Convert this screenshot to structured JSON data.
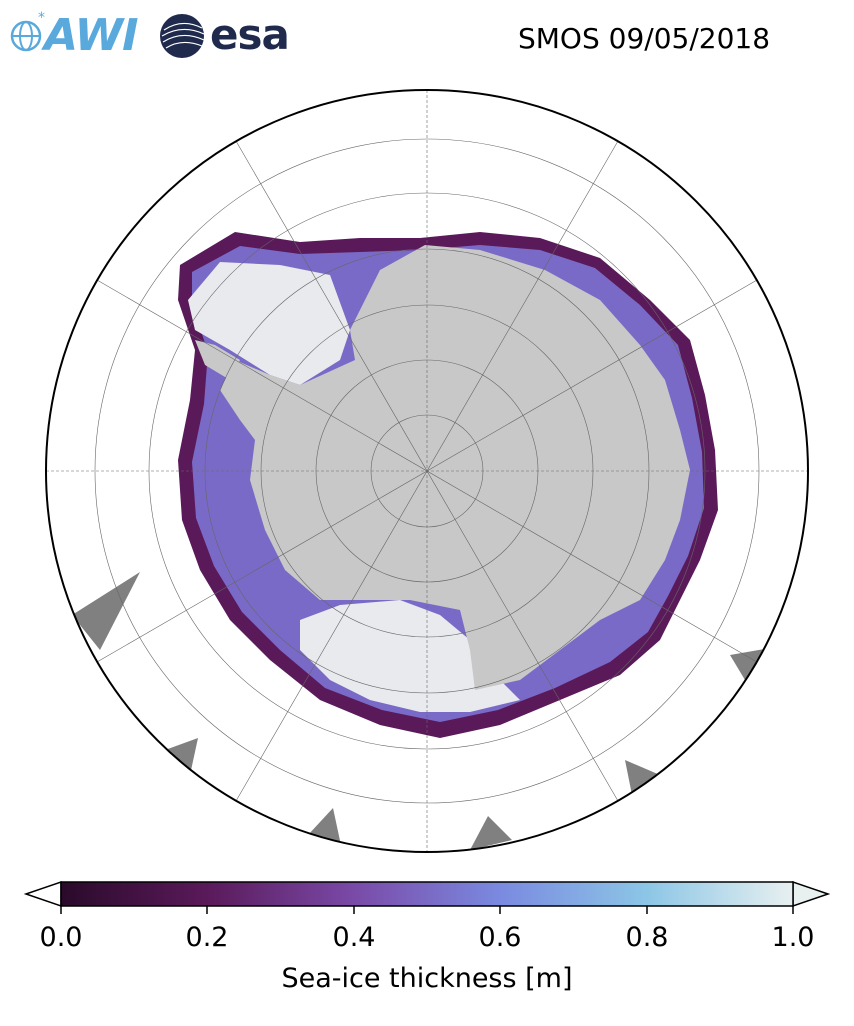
{
  "header": {
    "awi_logo_text": "AWI",
    "esa_logo_text": "esa",
    "title": "SMOS 09/05/2018"
  },
  "map": {
    "projection": "south-polar-stereographic",
    "land_color": "#c8c8c8",
    "ocean_color": "#ffffff",
    "missing_color": "#808080",
    "graticule": true
  },
  "colorbar": {
    "label": "Sea-ice thickness [m]",
    "min": 0.0,
    "max": 1.0,
    "ticks": [
      "0.0",
      "0.2",
      "0.4",
      "0.6",
      "0.8",
      "1.0"
    ],
    "colormap": [
      "#2a0a2a",
      "#5a1a5a",
      "#7a4aa8",
      "#7a8ae0",
      "#8cc6e6",
      "#e8f0f0"
    ],
    "extend": "both"
  }
}
